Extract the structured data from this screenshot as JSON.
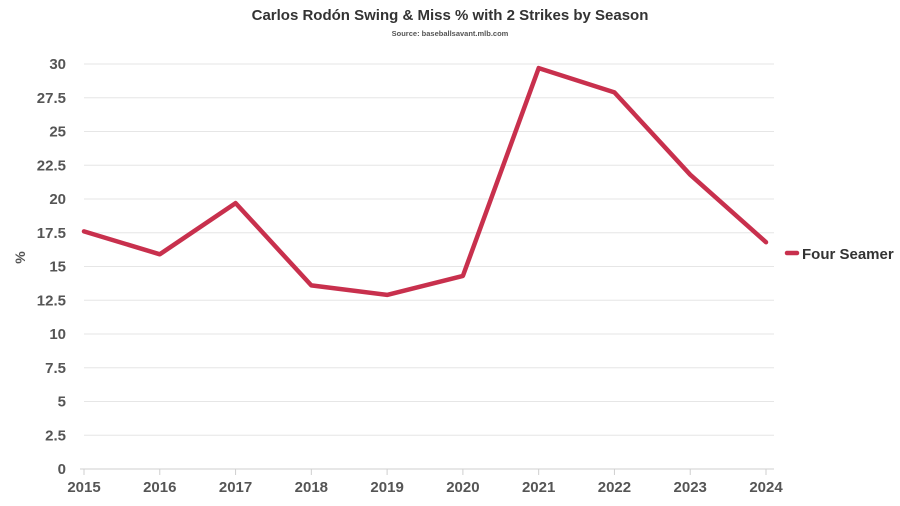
{
  "chart_data": {
    "type": "line",
    "title": "Carlos Rodón Swing & Miss % with 2 Strikes by Season",
    "subtitle": "Source: baseballsavant.mlb.com",
    "xlabel": "",
    "ylabel": "%",
    "categories": [
      "2015",
      "2016",
      "2017",
      "2018",
      "2019",
      "2020",
      "2021",
      "2022",
      "2023",
      "2024"
    ],
    "ylim": [
      0,
      30
    ],
    "yticks": [
      "0",
      "2.5",
      "5",
      "7.5",
      "10",
      "12.5",
      "15",
      "17.5",
      "20",
      "22.5",
      "25",
      "27.5",
      "30"
    ],
    "grid": true,
    "legend_position": "right",
    "series": [
      {
        "name": "Four Seamer",
        "color": "#c8304d",
        "values": [
          17.6,
          15.9,
          19.7,
          13.6,
          12.9,
          14.3,
          29.7,
          27.9,
          21.8,
          16.8
        ]
      }
    ]
  }
}
